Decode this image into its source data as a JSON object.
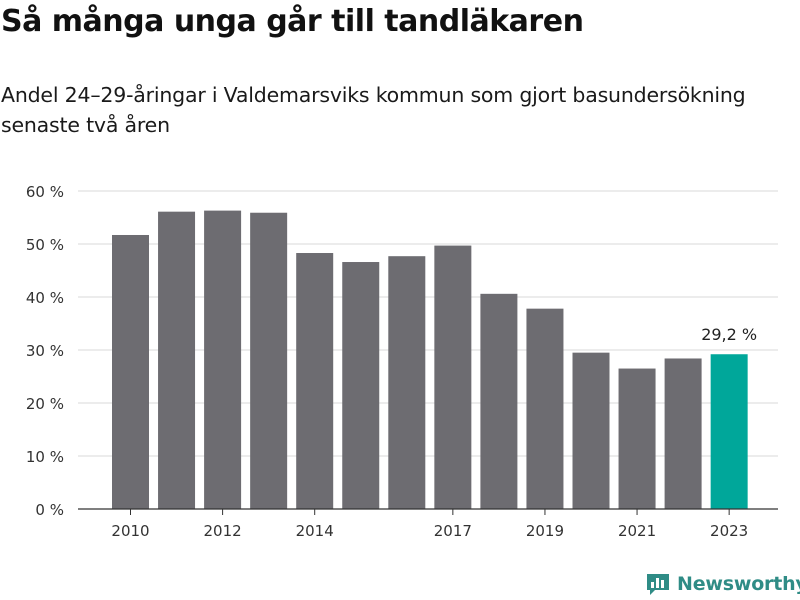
{
  "title": "Så många unga går till tandläkaren",
  "subtitle": "Andel 24–29-åringar i Valdemarsviks kommun som gjort basundersökning senaste två åren",
  "logo": {
    "text": "Newsworthy",
    "icon": "bar-chart-icon"
  },
  "colors": {
    "bar": "#6d6c71",
    "highlight": "#00a79a",
    "grid": "#d9d9d9",
    "axis": "#333333",
    "text": "#333333"
  },
  "chart_data": {
    "type": "bar",
    "categories": [
      "2010",
      "2011",
      "2012",
      "2013",
      "2014",
      "2015",
      "2016",
      "2017",
      "2018",
      "2019",
      "2020",
      "2021",
      "2022",
      "2023"
    ],
    "values": [
      51.7,
      56.1,
      56.3,
      55.9,
      48.3,
      46.6,
      47.7,
      49.7,
      40.6,
      37.8,
      29.5,
      26.5,
      28.4,
      29.2
    ],
    "x_tick_labels": [
      "2010",
      "",
      "2012",
      "",
      "2014",
      "",
      "",
      "2017",
      "",
      "2019",
      "",
      "2021",
      "",
      "2023"
    ],
    "y_ticks": [
      0,
      10,
      20,
      30,
      40,
      50,
      60
    ],
    "y_tick_labels": [
      "0 %",
      "10 %",
      "20 %",
      "30 %",
      "40 %",
      "50 %",
      "60 %"
    ],
    "ylim": [
      0,
      60
    ],
    "highlight_index": 13,
    "highlight_label": "29,2 %",
    "grid": true,
    "xlabel": "",
    "ylabel": ""
  }
}
